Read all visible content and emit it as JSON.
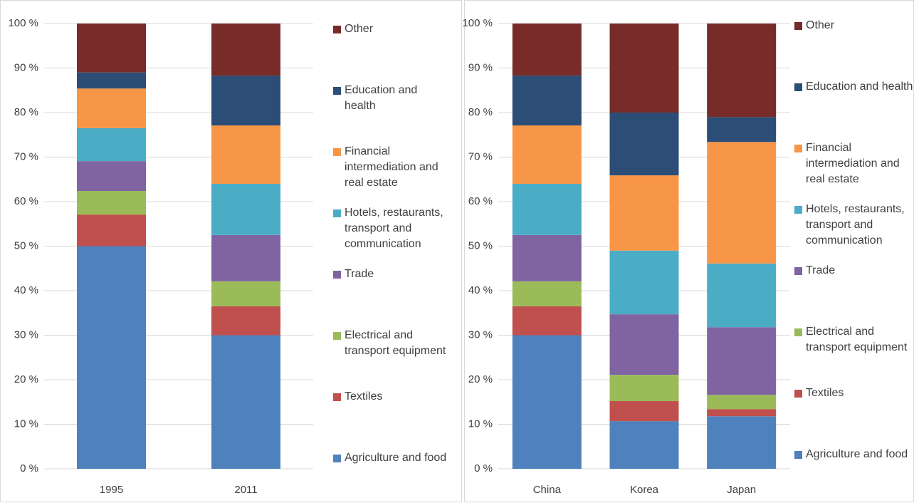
{
  "chart_data": [
    {
      "type": "stacked_bar",
      "categories": [
        "1995",
        "2011"
      ],
      "ylim": [
        0,
        100
      ],
      "yticks": [
        {
          "value": 0,
          "label": "0 %"
        },
        {
          "value": 10,
          "label": "10 %"
        },
        {
          "value": 20,
          "label": "20 %"
        },
        {
          "value": 30,
          "label": "30 %"
        },
        {
          "value": 40,
          "label": "40 %"
        },
        {
          "value": 50,
          "label": "50 %"
        },
        {
          "value": 60,
          "label": "60 %"
        },
        {
          "value": 70,
          "label": "70 %"
        },
        {
          "value": 80,
          "label": "80 %"
        },
        {
          "value": 90,
          "label": "90 %"
        },
        {
          "value": 100,
          "label": "100 %"
        }
      ],
      "grid": true,
      "legend": "right",
      "series": [
        {
          "name": "Agriculture and food",
          "color": "#4f81bd",
          "values": [
            50,
            30
          ]
        },
        {
          "name": "Textiles",
          "color": "#c0504d",
          "values": [
            7.1,
            6.5
          ]
        },
        {
          "name": "Electrical and transport equipment",
          "color": "#9bbb59",
          "values": [
            5.3,
            5.6
          ]
        },
        {
          "name": "Trade",
          "color": "#8064a2",
          "values": [
            6.7,
            10.4
          ]
        },
        {
          "name": "Hotels, restaurants, transport and communication",
          "color": "#4bacc6",
          "values": [
            7.4,
            11.5
          ]
        },
        {
          "name": "Financial intermediation and real estate",
          "color": "#f79646",
          "values": [
            8.9,
            13.1
          ]
        },
        {
          "name": "Education and health",
          "color": "#2c4d75",
          "values": [
            3.6,
            11.2
          ]
        },
        {
          "name": "Other",
          "color": "#772c2a",
          "values": [
            11,
            11.7
          ]
        }
      ]
    },
    {
      "type": "stacked_bar",
      "categories": [
        "China",
        "Korea",
        "Japan"
      ],
      "ylim": [
        0,
        100
      ],
      "yticks": [
        {
          "value": 0,
          "label": "0 %"
        },
        {
          "value": 10,
          "label": "10 %"
        },
        {
          "value": 20,
          "label": "20 %"
        },
        {
          "value": 30,
          "label": "30 %"
        },
        {
          "value": 40,
          "label": "40 %"
        },
        {
          "value": 50,
          "label": "50 %"
        },
        {
          "value": 60,
          "label": "60 %"
        },
        {
          "value": 70,
          "label": "70 %"
        },
        {
          "value": 80,
          "label": "80 %"
        },
        {
          "value": 90,
          "label": "90 %"
        },
        {
          "value": 100,
          "label": "100 %"
        }
      ],
      "grid": true,
      "legend": "right",
      "series": [
        {
          "name": "Agriculture and food",
          "color": "#4f81bd",
          "values": [
            30,
            10.7,
            11.8
          ]
        },
        {
          "name": "Textiles",
          "color": "#c0504d",
          "values": [
            6.5,
            4.5,
            1.6
          ]
        },
        {
          "name": "Electrical and transport equipment",
          "color": "#9bbb59",
          "values": [
            5.6,
            5.9,
            3.2
          ]
        },
        {
          "name": "Trade",
          "color": "#8064a2",
          "values": [
            10.4,
            13.6,
            15.2
          ]
        },
        {
          "name": "Hotels, restaurants, transport and communication",
          "color": "#4bacc6",
          "values": [
            11.5,
            14.3,
            14.3
          ]
        },
        {
          "name": "Financial intermediation and real estate",
          "color": "#f79646",
          "values": [
            13.1,
            16.9,
            27.3
          ]
        },
        {
          "name": "Education and health",
          "color": "#2c4d75",
          "values": [
            11.2,
            14.1,
            5.6
          ]
        },
        {
          "name": "Other",
          "color": "#772c2a",
          "values": [
            11.7,
            20,
            21
          ]
        }
      ]
    }
  ]
}
